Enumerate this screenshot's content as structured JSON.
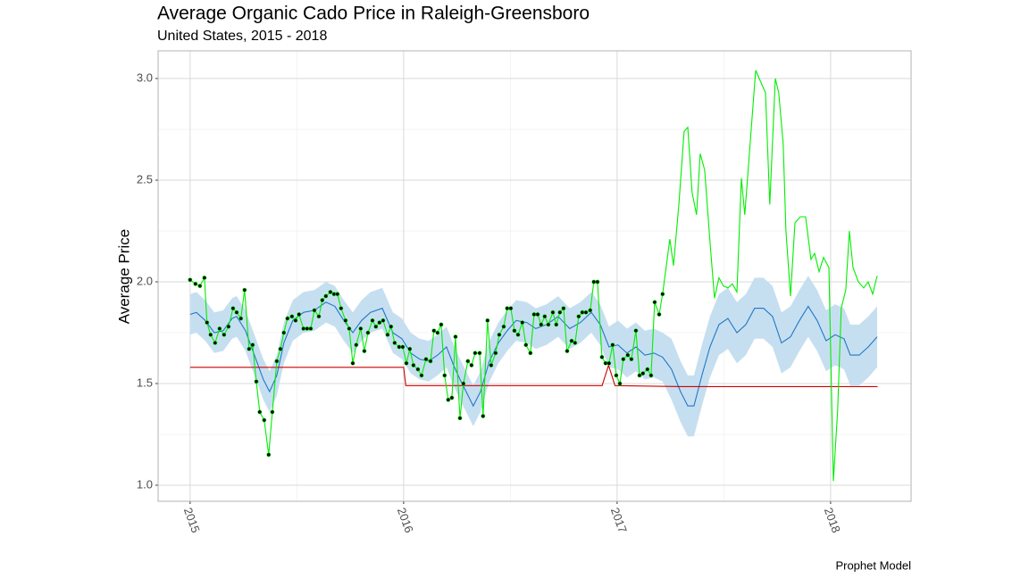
{
  "chart_data": {
    "type": "line",
    "title": "Average Organic Cado Price in Raleigh-Greensboro",
    "subtitle": "United States, 2015 - 2018",
    "ylabel": "Average Price",
    "caption": "Prophet Model",
    "xlim": [
      2014.85,
      2018.377
    ],
    "ylim": [
      0.921,
      3.136
    ],
    "xticks": [
      2015,
      2016,
      2017,
      2018
    ],
    "yticks": [
      {
        "value": 1,
        "label": "1.0"
      },
      1.5,
      {
        "value": 2,
        "label": "2.0"
      },
      2.5,
      {
        "value": 3,
        "label": "3.0"
      }
    ],
    "x_minor_ticks": [
      2015.5,
      2016.5,
      2017.5
    ],
    "y_minor_ticks": [
      1.25,
      1.75,
      2.25,
      2.75
    ],
    "grid": true,
    "series": [
      {
        "color": "#1f78c8",
        "band_color": "#c6dff0",
        "x": [
          2015.0,
          2015.029,
          2015.071,
          2015.113,
          2015.155,
          2015.197,
          2015.218,
          2015.259,
          2015.301,
          2015.343,
          2015.372,
          2015.406,
          2015.439,
          2015.481,
          2015.531,
          2015.582,
          2015.636,
          2015.678,
          2015.72,
          2015.762,
          2015.803,
          2015.845,
          2015.9,
          2015.95,
          2015.992,
          2016.033,
          2016.075,
          2016.117,
          2016.159,
          2016.201,
          2016.234,
          2016.264,
          2016.293,
          2016.326,
          2016.36,
          2016.402,
          2016.444,
          2016.485,
          2016.527,
          2016.577,
          2016.619,
          2016.669,
          2016.724,
          2016.778,
          2016.828,
          2016.879,
          2016.921,
          2016.962,
          2017.004,
          2017.046,
          2017.088,
          2017.13,
          2017.172,
          2017.213,
          2017.255,
          2017.297,
          2017.331,
          2017.36,
          2017.397,
          2017.435,
          2017.477,
          2017.519,
          2017.561,
          2017.603,
          2017.644,
          2017.686,
          2017.728,
          2017.77,
          2017.812,
          2017.854,
          2017.895,
          2017.937,
          2017.979,
          2018.021,
          2018.063,
          2018.092,
          2018.134,
          2018.176,
          2018.218
        ],
        "values": [
          1.84,
          1.85,
          1.81,
          1.75,
          1.76,
          1.82,
          1.83,
          1.76,
          1.64,
          1.52,
          1.46,
          1.54,
          1.7,
          1.81,
          1.85,
          1.86,
          1.9,
          1.88,
          1.81,
          1.75,
          1.81,
          1.85,
          1.87,
          1.75,
          1.72,
          1.65,
          1.62,
          1.61,
          1.64,
          1.68,
          1.59,
          1.52,
          1.46,
          1.39,
          1.46,
          1.61,
          1.7,
          1.76,
          1.81,
          1.8,
          1.77,
          1.79,
          1.83,
          1.77,
          1.8,
          1.85,
          1.79,
          1.68,
          1.69,
          1.65,
          1.68,
          1.64,
          1.65,
          1.63,
          1.57,
          1.46,
          1.39,
          1.39,
          1.54,
          1.68,
          1.79,
          1.82,
          1.75,
          1.79,
          1.87,
          1.87,
          1.83,
          1.7,
          1.73,
          1.81,
          1.88,
          1.81,
          1.71,
          1.74,
          1.72,
          1.64,
          1.64,
          1.68,
          1.73
        ],
        "lower": [
          1.74,
          1.75,
          1.71,
          1.65,
          1.66,
          1.72,
          1.73,
          1.66,
          1.54,
          1.42,
          1.36,
          1.44,
          1.6,
          1.71,
          1.75,
          1.76,
          1.8,
          1.78,
          1.71,
          1.65,
          1.71,
          1.75,
          1.77,
          1.65,
          1.62,
          1.55,
          1.52,
          1.51,
          1.54,
          1.58,
          1.49,
          1.42,
          1.36,
          1.29,
          1.36,
          1.51,
          1.6,
          1.66,
          1.71,
          1.7,
          1.67,
          1.69,
          1.73,
          1.67,
          1.7,
          1.75,
          1.69,
          1.58,
          1.57,
          1.53,
          1.56,
          1.52,
          1.53,
          1.51,
          1.42,
          1.31,
          1.24,
          1.24,
          1.39,
          1.53,
          1.64,
          1.67,
          1.6,
          1.64,
          1.72,
          1.72,
          1.68,
          1.55,
          1.58,
          1.66,
          1.73,
          1.66,
          1.56,
          1.59,
          1.57,
          1.49,
          1.49,
          1.53,
          1.58
        ],
        "upper": [
          1.94,
          1.95,
          1.91,
          1.85,
          1.86,
          1.92,
          1.93,
          1.86,
          1.74,
          1.62,
          1.56,
          1.64,
          1.8,
          1.91,
          1.95,
          1.96,
          2.0,
          1.98,
          1.91,
          1.85,
          1.91,
          1.95,
          1.97,
          1.85,
          1.82,
          1.75,
          1.72,
          1.71,
          1.74,
          1.78,
          1.69,
          1.62,
          1.56,
          1.49,
          1.56,
          1.71,
          1.8,
          1.86,
          1.91,
          1.9,
          1.87,
          1.89,
          1.93,
          1.87,
          1.9,
          1.95,
          1.89,
          1.78,
          1.81,
          1.77,
          1.8,
          1.76,
          1.77,
          1.75,
          1.72,
          1.61,
          1.54,
          1.54,
          1.69,
          1.83,
          1.94,
          1.97,
          1.9,
          1.94,
          2.02,
          2.02,
          1.98,
          1.85,
          1.88,
          1.96,
          2.03,
          1.96,
          1.86,
          1.89,
          1.87,
          1.79,
          1.79,
          1.83,
          1.88
        ]
      },
      {
        "color": "#cc0000",
        "x": [
          2015.0,
          2016.0,
          2016.01,
          2016.93,
          2016.96,
          2016.99,
          2017.3,
          2018.22
        ],
        "values": [
          1.58,
          1.58,
          1.49,
          1.49,
          1.59,
          1.49,
          1.485,
          1.485
        ]
      },
      {
        "color": "#00ee00",
        "marker_color": "#000000",
        "x": [
          2015.0,
          2015.025,
          2015.046,
          2015.067,
          2015.079,
          2015.096,
          2015.117,
          2015.138,
          2015.159,
          2015.18,
          2015.201,
          2015.218,
          2015.238,
          2015.255,
          2015.276,
          2015.293,
          2015.31,
          2015.326,
          2015.347,
          2015.368,
          2015.385,
          2015.406,
          2015.423,
          2015.439,
          2015.456,
          2015.477,
          2015.494,
          2015.51,
          2015.531,
          2015.548,
          2015.565,
          2015.582,
          2015.603,
          2015.619,
          2015.636,
          2015.657,
          2015.674,
          2015.69,
          2015.707,
          2015.728,
          2015.745,
          2015.762,
          2015.778,
          2015.799,
          2015.816,
          2015.833,
          2015.854,
          2015.87,
          2015.887,
          2015.904,
          2015.925,
          2015.941,
          2015.958,
          2015.979,
          2015.996,
          2016.013,
          2016.029,
          2016.046,
          2016.067,
          2016.084,
          2016.105,
          2016.126,
          2016.142,
          2016.159,
          2016.176,
          2016.192,
          2016.209,
          2016.226,
          2016.243,
          2016.264,
          2016.28,
          2016.301,
          2016.318,
          2016.335,
          2016.356,
          2016.372,
          2016.393,
          2016.41,
          2016.431,
          2016.448,
          2016.469,
          2016.485,
          2016.502,
          2016.519,
          2016.536,
          2016.556,
          2016.573,
          2016.594,
          2016.611,
          2016.628,
          2016.644,
          2016.661,
          2016.678,
          2016.699,
          2016.715,
          2016.732,
          2016.749,
          2016.766,
          2016.787,
          2016.803,
          2016.82,
          2016.837,
          2016.854,
          2016.874,
          2016.891,
          2016.908,
          2016.929,
          2016.946,
          2016.962,
          2016.979,
          2016.996,
          2017.013,
          2017.029,
          2017.05,
          2017.067,
          2017.088,
          2017.105,
          2017.121,
          2017.142,
          2017.159,
          2017.176,
          2017.197,
          2017.213
        ],
        "values": [
          2.01,
          1.99,
          1.98,
          2.02,
          1.8,
          1.74,
          1.7,
          1.77,
          1.74,
          1.78,
          1.87,
          1.85,
          1.82,
          1.96,
          1.67,
          1.69,
          1.51,
          1.36,
          1.32,
          1.15,
          1.36,
          1.61,
          1.67,
          1.75,
          1.82,
          1.83,
          1.81,
          1.84,
          1.77,
          1.77,
          1.77,
          1.86,
          1.83,
          1.91,
          1.93,
          1.95,
          1.94,
          1.94,
          1.87,
          1.81,
          1.77,
          1.6,
          1.69,
          1.77,
          1.66,
          1.75,
          1.81,
          1.78,
          1.8,
          1.81,
          1.74,
          1.78,
          1.7,
          1.68,
          1.68,
          1.6,
          1.67,
          1.59,
          1.57,
          1.54,
          1.62,
          1.61,
          1.76,
          1.75,
          1.79,
          1.54,
          1.42,
          1.43,
          1.73,
          1.33,
          1.5,
          1.61,
          1.59,
          1.65,
          1.65,
          1.34,
          1.81,
          1.59,
          1.65,
          1.74,
          1.78,
          1.87,
          1.87,
          1.76,
          1.74,
          1.8,
          1.69,
          1.65,
          1.84,
          1.84,
          1.79,
          1.83,
          1.79,
          1.85,
          1.79,
          1.85,
          1.87,
          1.66,
          1.71,
          1.7,
          1.83,
          1.85,
          1.85,
          1.86,
          2.0,
          2.0,
          1.63,
          1.6,
          1.6,
          1.69,
          1.54,
          1.5,
          1.62,
          1.64,
          1.62,
          1.76,
          1.54,
          1.55,
          1.57,
          1.54,
          1.9,
          1.84,
          1.94
        ]
      },
      {
        "color": "#00ee00",
        "x": [
          2017.213,
          2017.247,
          2017.264,
          2017.289,
          2017.314,
          2017.331,
          2017.351,
          2017.372,
          2017.389,
          2017.41,
          2017.435,
          2017.456,
          2017.477,
          2017.498,
          2017.519,
          2017.54,
          2017.561,
          2017.582,
          2017.598,
          2017.623,
          2017.649,
          2017.674,
          2017.695,
          2017.715,
          2017.741,
          2017.757,
          2017.778,
          2017.791,
          2017.812,
          2017.833,
          2017.858,
          2017.883,
          2017.908,
          2017.925,
          2017.946,
          2017.967,
          2017.992,
          2018.013,
          2018.033,
          2018.05,
          2018.071,
          2018.088,
          2018.105,
          2018.13,
          2018.155,
          2018.176,
          2018.197,
          2018.218
        ],
        "values": [
          1.94,
          2.21,
          2.08,
          2.38,
          2.74,
          2.76,
          2.44,
          2.33,
          2.63,
          2.55,
          2.2,
          1.92,
          2.02,
          1.98,
          1.97,
          1.99,
          1.95,
          2.51,
          2.33,
          2.68,
          3.04,
          2.98,
          2.93,
          2.38,
          3.0,
          2.93,
          2.68,
          2.25,
          1.93,
          2.29,
          2.32,
          2.32,
          2.11,
          2.14,
          2.05,
          2.12,
          2.07,
          1.02,
          1.37,
          1.87,
          1.96,
          2.25,
          2.07,
          2.0,
          1.97,
          2.0,
          1.94,
          2.03
        ]
      }
    ]
  }
}
